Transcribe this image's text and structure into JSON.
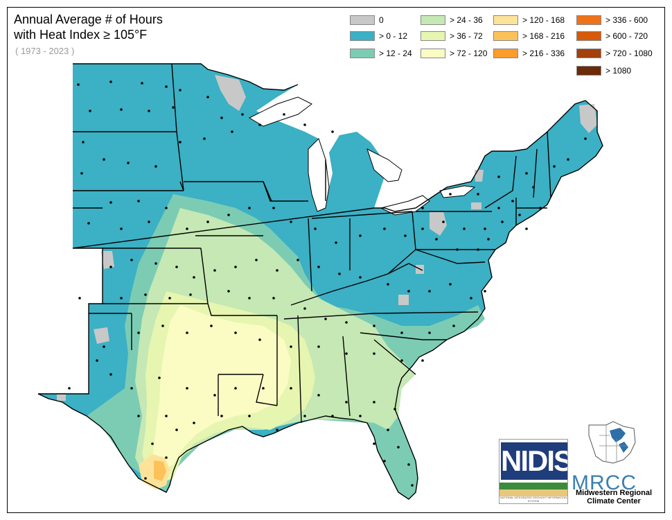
{
  "title_line1": "Annual Average # of Hours",
  "title_line2": "with Heat Index ≥ 105°F",
  "subtitle": "( 1973 - 2023 )",
  "legend": [
    {
      "label": "0",
      "color": "#c8c8c8"
    },
    {
      "label": "> 0 - 12",
      "color": "#3cb0c4"
    },
    {
      "label": "> 12 - 24",
      "color": "#7cccb4"
    },
    {
      "label": "> 24 - 36",
      "color": "#c5e8b4"
    },
    {
      "label": "> 36 - 72",
      "color": "#e6f5b0"
    },
    {
      "label": "> 72 - 120",
      "color": "#fafcc4"
    },
    {
      "label": "> 120 - 168",
      "color": "#fde39a"
    },
    {
      "label": "> 168 - 216",
      "color": "#fcc25a"
    },
    {
      "label": "> 216 - 336",
      "color": "#fb9c2d"
    },
    {
      "label": "> 336 - 600",
      "color": "#ee7219"
    },
    {
      "label": "> 600 - 720",
      "color": "#d65a0a"
    },
    {
      "label": "> 720 - 1080",
      "color": "#a3400b"
    },
    {
      "label": "> 1080",
      "color": "#6b2a08"
    }
  ],
  "logos": {
    "nidis": "NIDIS",
    "nidis_small": "NATIONAL INTEGRATED DROUGHT INFORMATION SYSTEM",
    "mrcc": "MRCC",
    "mrcc_sub": "Midwestern Regional Climate Center"
  }
}
